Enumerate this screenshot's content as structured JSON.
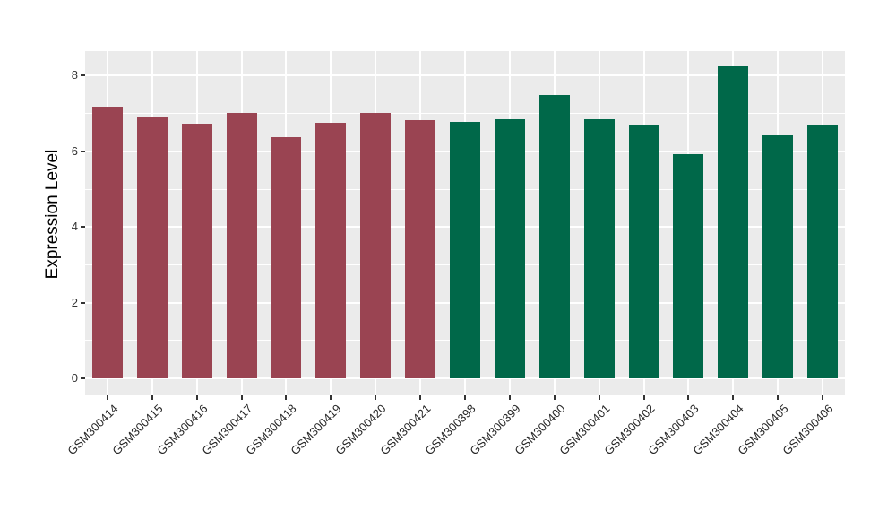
{
  "figure": {
    "background": "#FFFFFF"
  },
  "chart_data": {
    "type": "bar",
    "title": "",
    "xlabel": "",
    "ylabel": "Expression Level",
    "yticks": [
      0,
      2,
      4,
      6,
      8
    ],
    "yminorticks": [
      1,
      3,
      5,
      7
    ],
    "ylim": [
      -0.43,
      8.67
    ],
    "grid": "on",
    "legend": "none",
    "panel_bg": "#EBEBEB",
    "grid_color": "#FFFFFF",
    "axis_text_color": "#262626",
    "group_colors": {
      "maroon": "#9A4452",
      "green": "#006849"
    },
    "categories": [
      "GSM300414",
      "GSM300415",
      "GSM300416",
      "GSM300417",
      "GSM300418",
      "GSM300419",
      "GSM300420",
      "GSM300421",
      "GSM300398",
      "GSM300399",
      "GSM300400",
      "GSM300401",
      "GSM300402",
      "GSM300403",
      "GSM300404",
      "GSM300405",
      "GSM300406"
    ],
    "values": [
      7.19,
      6.92,
      6.74,
      7.01,
      6.38,
      6.76,
      7.01,
      6.82,
      6.78,
      6.84,
      7.49,
      6.84,
      6.71,
      5.93,
      8.25,
      6.41,
      6.7
    ],
    "bar_colors": [
      "#9A4452",
      "#9A4452",
      "#9A4452",
      "#9A4452",
      "#9A4452",
      "#9A4452",
      "#9A4452",
      "#9A4452",
      "#006849",
      "#006849",
      "#006849",
      "#006849",
      "#006849",
      "#006849",
      "#006849",
      "#006849",
      "#006849"
    ]
  }
}
